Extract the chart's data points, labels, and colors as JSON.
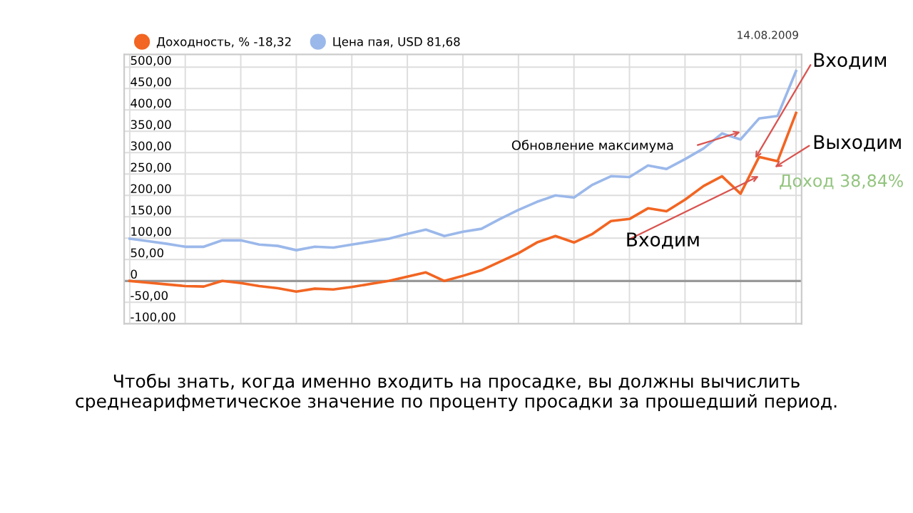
{
  "chart_data": {
    "type": "line",
    "categories": [
      null,
      null,
      null,
      null,
      null,
      null,
      null,
      null,
      null,
      null,
      null,
      null,
      null,
      null,
      null,
      null,
      null,
      null,
      null,
      null,
      null,
      null,
      null,
      null,
      null,
      null,
      null,
      null,
      null,
      null,
      null,
      null,
      null,
      null,
      null,
      null,
      null
    ],
    "series": [
      {
        "name": "Доходность, % -18,32",
        "color": "#f26522",
        "values": [
          0,
          -4,
          -8,
          -12,
          -13,
          0,
          -5,
          -12,
          -17,
          -25,
          -18,
          -20,
          -14,
          -7,
          0,
          10,
          20,
          0,
          12,
          25,
          45,
          65,
          90,
          105,
          90,
          110,
          140,
          145,
          170,
          163,
          190,
          222,
          245,
          204,
          290,
          280,
          393
        ]
      },
      {
        "name": "Цена пая, USD 81,68",
        "color": "#9bb8ea",
        "values": [
          99,
          93,
          87,
          80,
          80,
          95,
          95,
          85,
          82,
          72,
          80,
          78,
          85,
          92,
          99,
          110,
          120,
          105,
          115,
          122,
          145,
          166,
          185,
          200,
          195,
          225,
          245,
          243,
          270,
          262,
          285,
          310,
          345,
          331,
          380,
          386,
          491
        ]
      }
    ],
    "ylim": [
      -100,
      530
    ],
    "yticks": [
      {
        "value": -100,
        "label": "-100,00"
      },
      {
        "value": -50,
        "label": "-50,00"
      },
      0,
      {
        "value": 50,
        "label": "50,00"
      },
      {
        "value": 100,
        "label": "100,00"
      },
      {
        "value": 150,
        "label": "150,00"
      },
      {
        "value": 200,
        "label": "200,00"
      },
      {
        "value": 250,
        "label": "250,00"
      },
      {
        "value": 300,
        "label": "300,00"
      },
      {
        "value": 350,
        "label": "350,00"
      },
      {
        "value": 400,
        "label": "400,00"
      },
      {
        "value": 450,
        "label": "450,00"
      },
      {
        "value": 500,
        "label": "500,00"
      }
    ],
    "ref_lines": [
      {
        "axis": "y",
        "value": 0,
        "color": "#999999"
      }
    ],
    "grid": true,
    "legend": "top left",
    "marker": "none",
    "line_style": "solid",
    "annotations": [
      "14.08.2009",
      "Входим",
      "Обновление максимума",
      "Выходим",
      "Доход 38,84%",
      "Входим",
      "Чтобы знать, когда именно входить на просадке, вы должны вычислить среднеарифметическое значение по проценту просадки за прошедший период."
    ]
  }
}
